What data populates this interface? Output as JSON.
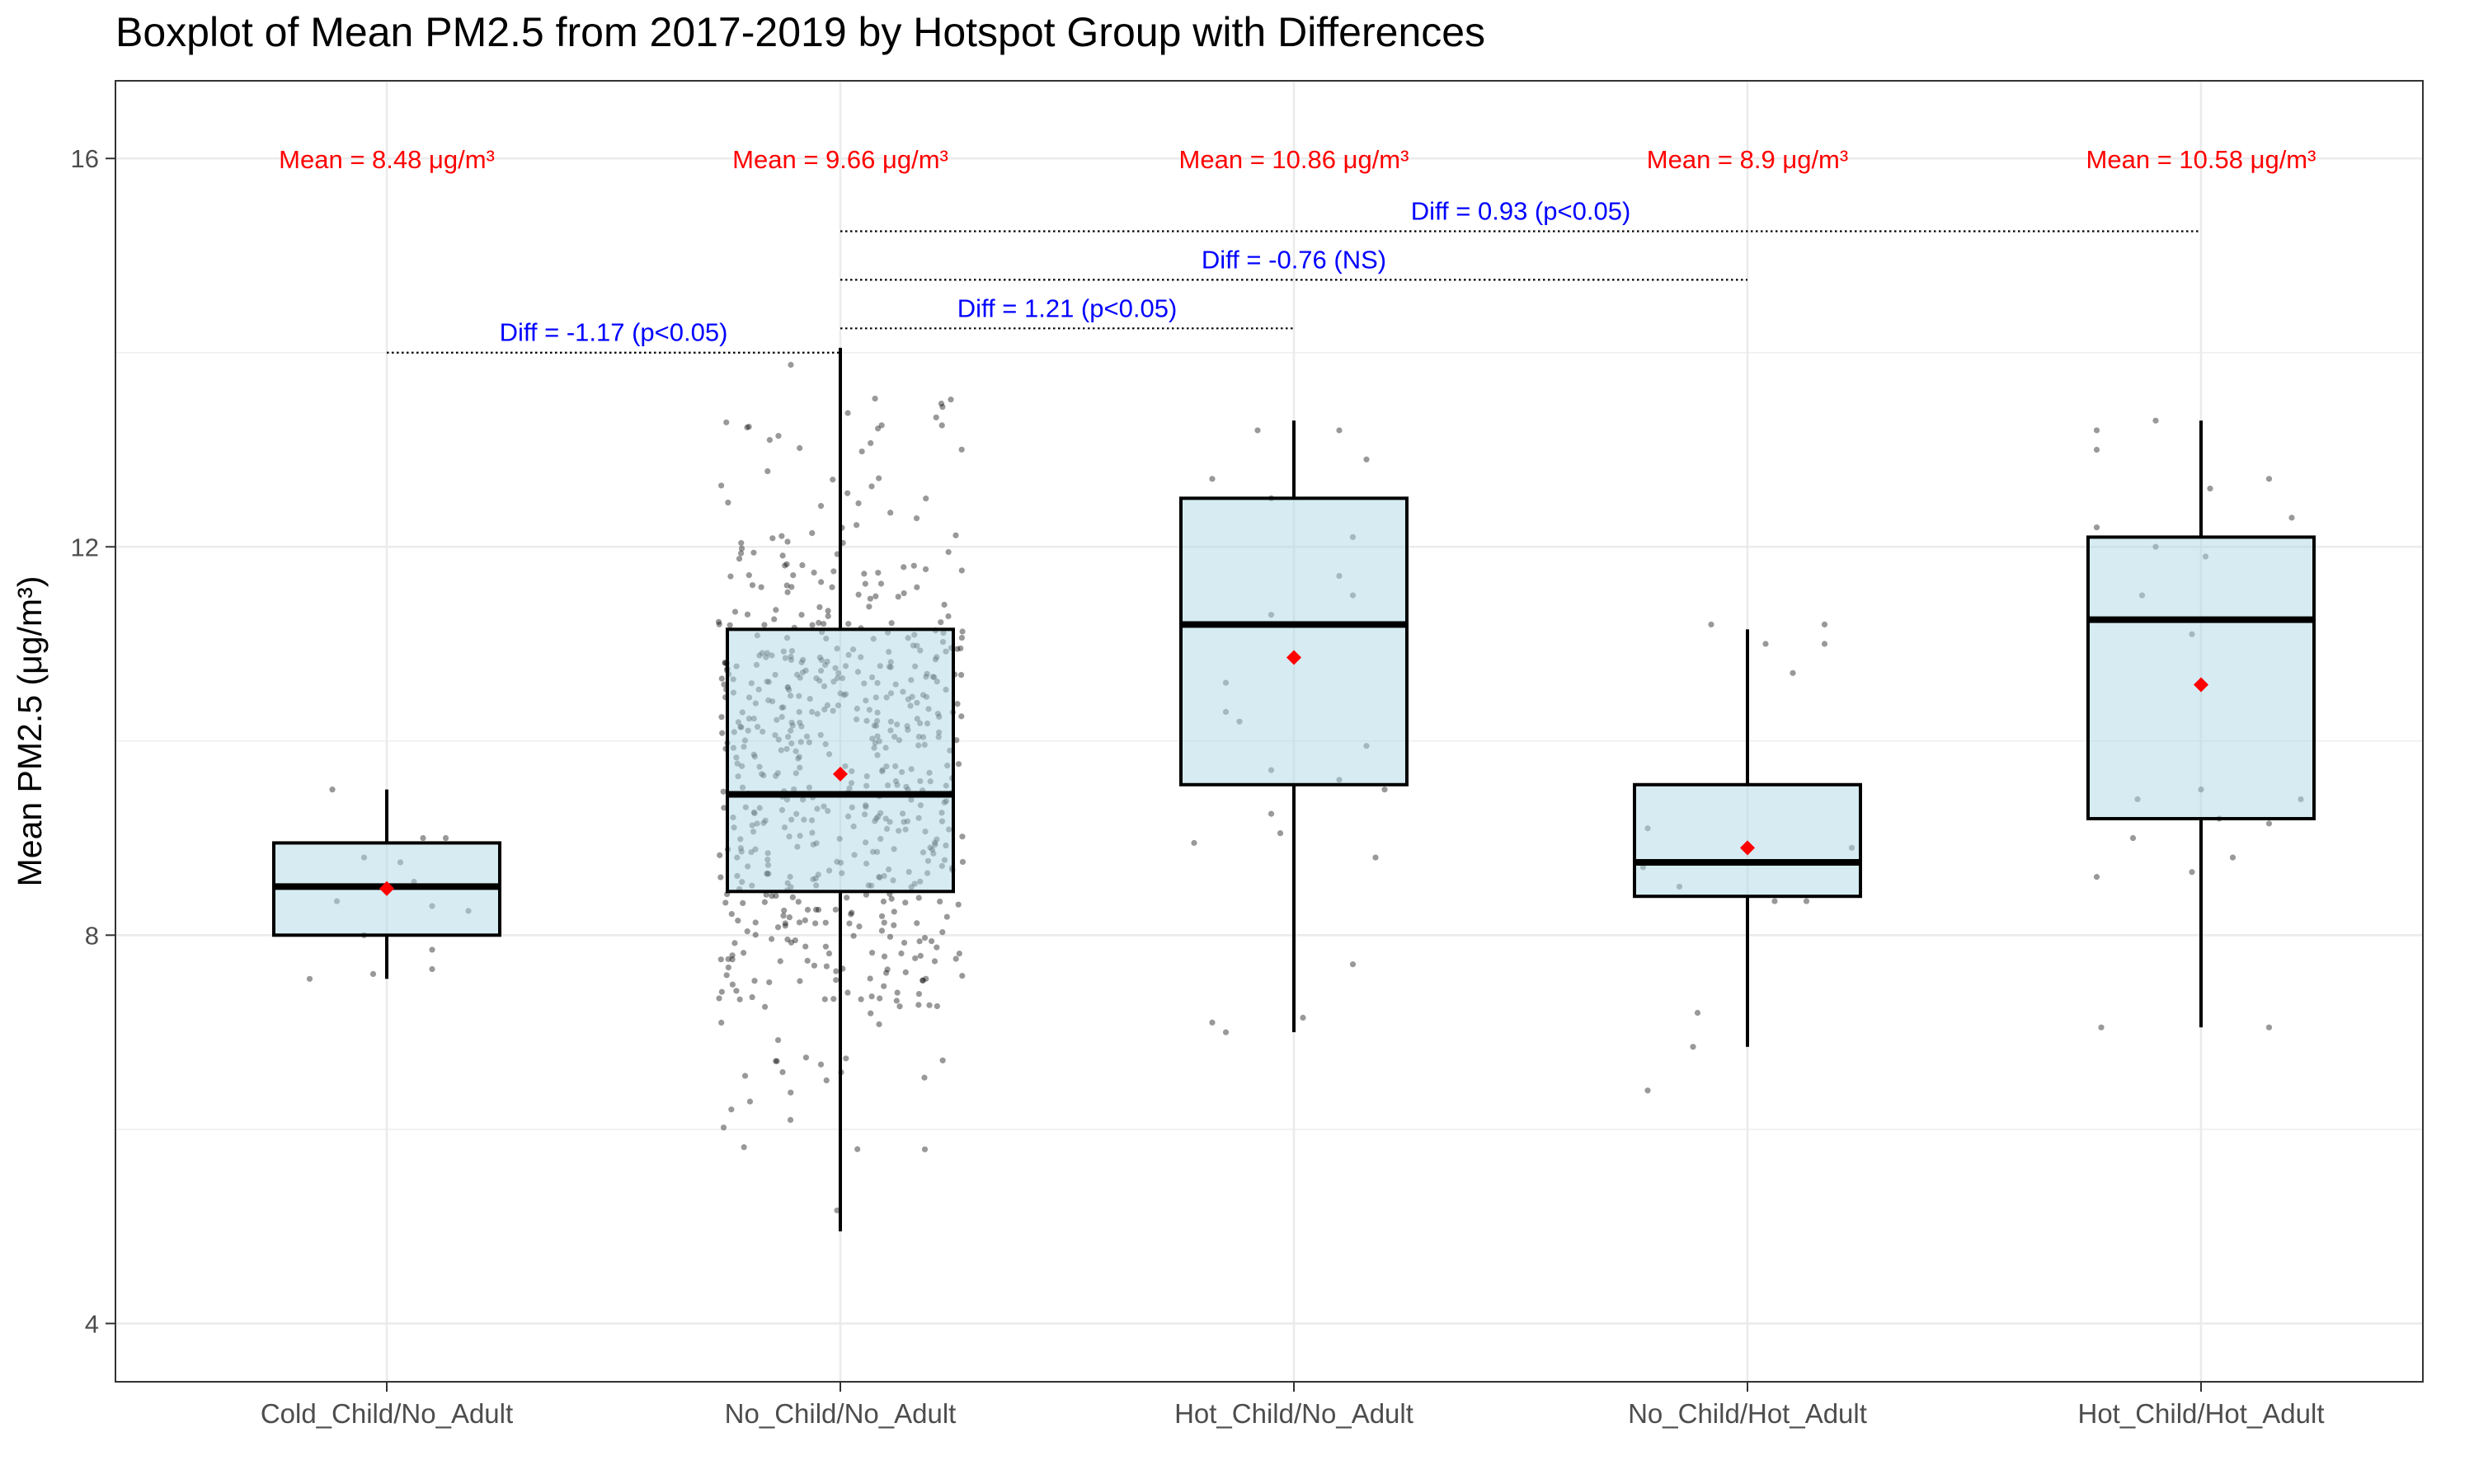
{
  "chart_data": {
    "type": "boxplot",
    "title": "Boxplot of Mean PM2.5 from 2017-2019 by Hotspot Group with Differences",
    "xlabel": "",
    "ylabel": "Mean PM2.5 (μg/m³)",
    "ylim": [
      3.4,
      16.8
    ],
    "yticks": [
      4,
      8,
      12,
      16
    ],
    "grid": true,
    "categories": [
      "Cold_Child/No_Adult",
      "No_Child/No_Adult",
      "Hot_Child/No_Adult",
      "No_Child/Hot_Adult",
      "Hot_Child/Hot_Adult"
    ],
    "boxes": [
      {
        "category": "Cold_Child/No_Adult",
        "whisker_low": 7.55,
        "q1": 8.0,
        "median": 8.5,
        "q3": 8.95,
        "whisker_high": 9.5,
        "mean": 8.48,
        "mean_label": "Mean = 8.48 μg/m³"
      },
      {
        "category": "No_Child/No_Adult",
        "whisker_low": 4.95,
        "q1": 8.45,
        "median": 9.45,
        "q3": 11.15,
        "whisker_high": 14.05,
        "mean": 9.66,
        "mean_label": "Mean = 9.66 μg/m³"
      },
      {
        "category": "Hot_Child/No_Adult",
        "whisker_low": 7.0,
        "q1": 9.55,
        "median": 11.2,
        "q3": 12.5,
        "whisker_high": 13.3,
        "mean": 10.86,
        "mean_label": "Mean = 10.86 μg/m³"
      },
      {
        "category": "No_Child/Hot_Adult",
        "whisker_low": 6.85,
        "q1": 8.4,
        "median": 8.75,
        "q3": 9.55,
        "whisker_high": 11.15,
        "mean": 8.9,
        "mean_label": "Mean = 8.9 μg/m³"
      },
      {
        "category": "Hot_Child/Hot_Adult",
        "whisker_low": 7.05,
        "q1": 9.2,
        "median": 11.25,
        "q3": 12.1,
        "whisker_high": 13.3,
        "mean": 10.58,
        "mean_label": "Mean = 10.58 μg/m³"
      }
    ],
    "differences": [
      {
        "from": "Cold_Child/No_Adult",
        "to": "No_Child/No_Adult",
        "y": 14.0,
        "label": "Diff = -1.17 (p<0.05)"
      },
      {
        "from": "No_Child/No_Adult",
        "to": "Hot_Child/No_Adult",
        "y": 14.25,
        "label": "Diff = 1.21 (p<0.05)"
      },
      {
        "from": "No_Child/No_Adult",
        "to": "No_Child/Hot_Adult",
        "y": 14.75,
        "label": "Diff = -0.76 (NS)"
      },
      {
        "from": "No_Child/No_Adult",
        "to": "Hot_Child/Hot_Adult",
        "y": 15.25,
        "label": "Diff = 0.93 (p<0.05)"
      }
    ],
    "jitter_points": [
      [
        0,
        -0.12,
        9.5
      ],
      [
        0,
        -0.05,
        8.8
      ],
      [
        0,
        0.08,
        9.0
      ],
      [
        0,
        0.13,
        9.0
      ],
      [
        0,
        0.03,
        8.75
      ],
      [
        0,
        0.06,
        8.55
      ],
      [
        0,
        -0.11,
        8.35
      ],
      [
        0,
        0.1,
        8.3
      ],
      [
        0,
        0.18,
        8.25
      ],
      [
        0,
        -0.05,
        8.0
      ],
      [
        0,
        0.1,
        7.85
      ],
      [
        0,
        -0.17,
        7.55
      ],
      [
        0,
        -0.03,
        7.6
      ],
      [
        0,
        0.1,
        7.65
      ],
      [
        2,
        0.1,
        13.2
      ],
      [
        2,
        -0.08,
        13.2
      ],
      [
        2,
        0.16,
        12.9
      ],
      [
        2,
        -0.18,
        12.7
      ],
      [
        2,
        -0.05,
        12.5
      ],
      [
        2,
        0.13,
        12.1
      ],
      [
        2,
        0.1,
        11.7
      ],
      [
        2,
        0.13,
        11.5
      ],
      [
        2,
        -0.05,
        11.3
      ],
      [
        2,
        -0.18,
        11.2
      ],
      [
        2,
        -0.15,
        10.6
      ],
      [
        2,
        -0.15,
        10.3
      ],
      [
        2,
        -0.12,
        10.2
      ],
      [
        2,
        0.16,
        9.95
      ],
      [
        2,
        -0.05,
        9.7
      ],
      [
        2,
        0.1,
        9.6
      ],
      [
        2,
        0.2,
        9.5
      ],
      [
        2,
        -0.05,
        9.25
      ],
      [
        2,
        -0.03,
        9.05
      ],
      [
        2,
        -0.22,
        8.95
      ],
      [
        2,
        0.18,
        8.8
      ],
      [
        2,
        0.13,
        7.7
      ],
      [
        2,
        -0.18,
        7.1
      ],
      [
        2,
        -0.15,
        7.0
      ],
      [
        2,
        0.02,
        7.15
      ],
      [
        3,
        -0.08,
        11.2
      ],
      [
        3,
        0.17,
        11.2
      ],
      [
        3,
        0.04,
        11.0
      ],
      [
        3,
        0.1,
        10.7
      ],
      [
        3,
        0.17,
        11.0
      ],
      [
        3,
        -0.22,
        9.1
      ],
      [
        3,
        -0.23,
        8.7
      ],
      [
        3,
        -0.15,
        8.5
      ],
      [
        3,
        0.23,
        8.9
      ],
      [
        3,
        0.13,
        8.35
      ],
      [
        3,
        0.06,
        8.35
      ],
      [
        3,
        -0.11,
        7.2
      ],
      [
        3,
        -0.12,
        6.85
      ],
      [
        3,
        -0.22,
        6.4
      ],
      [
        4,
        -0.23,
        13.2
      ],
      [
        4,
        -0.23,
        13.0
      ],
      [
        4,
        -0.1,
        13.3
      ],
      [
        4,
        -0.23,
        12.2
      ],
      [
        4,
        0.15,
        12.7
      ],
      [
        4,
        0.2,
        12.3
      ],
      [
        4,
        -0.1,
        12.0
      ],
      [
        4,
        0.01,
        11.9
      ],
      [
        4,
        -0.13,
        11.5
      ],
      [
        4,
        -0.02,
        11.1
      ],
      [
        4,
        0.02,
        12.6
      ],
      [
        4,
        0.22,
        9.4
      ],
      [
        4,
        -0.14,
        9.4
      ],
      [
        4,
        -0.15,
        9.0
      ],
      [
        4,
        0.0,
        9.5
      ],
      [
        4,
        -0.23,
        8.6
      ],
      [
        4,
        -0.02,
        8.65
      ],
      [
        4,
        0.07,
        8.8
      ],
      [
        4,
        0.04,
        9.2
      ],
      [
        4,
        0.15,
        9.15
      ],
      [
        4,
        -0.22,
        7.05
      ],
      [
        4,
        0.15,
        7.05
      ]
    ],
    "dense_group": {
      "category": "No_Child/No_Adult",
      "n": 620,
      "seed": 7
    }
  }
}
